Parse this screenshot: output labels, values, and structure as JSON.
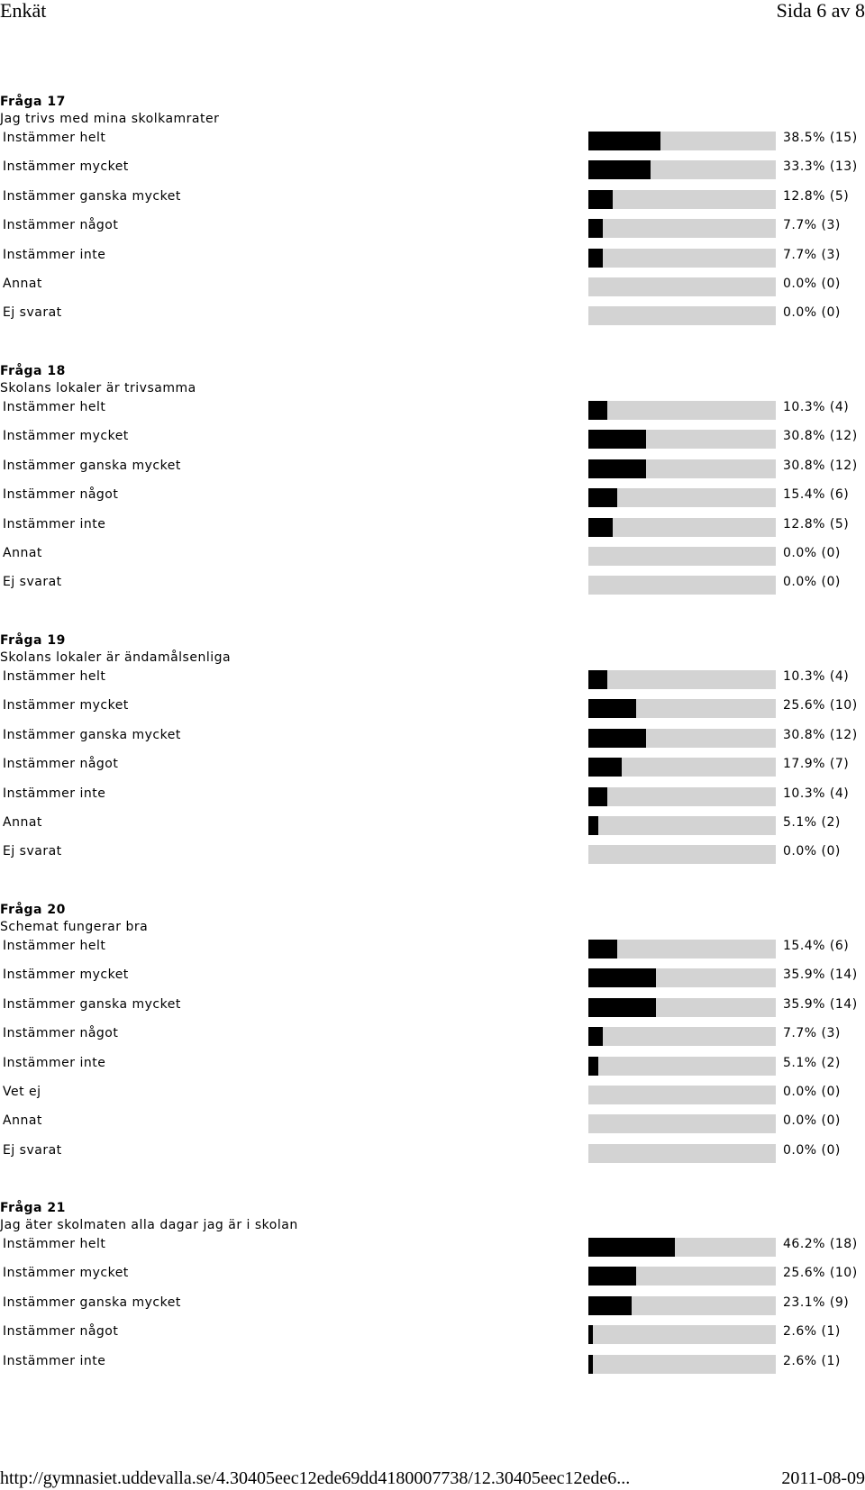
{
  "header": {
    "left": "Enkät",
    "right": "Sida 6 av 8"
  },
  "footer": {
    "url": "http://gymnasiet.uddevalla.se/4.30405eec12ede69dd4180007738/12.30405eec12ede6...",
    "date": "2011-08-09"
  },
  "colors": {
    "bar_fill": "#000000",
    "bar_track": "#d3d3d3"
  },
  "questions": [
    {
      "title": "Fråga 17",
      "text": "Jag trivs med mina skolkamrater",
      "rows": [
        {
          "label": "Instämmer helt",
          "percent": 38.5,
          "value": "38.5% (15)"
        },
        {
          "label": "Instämmer mycket",
          "percent": 33.3,
          "value": "33.3% (13)"
        },
        {
          "label": "Instämmer ganska mycket",
          "percent": 12.8,
          "value": "12.8% (5)"
        },
        {
          "label": "Instämmer något",
          "percent": 7.7,
          "value": "7.7% (3)"
        },
        {
          "label": "Instämmer inte",
          "percent": 7.7,
          "value": "7.7% (3)"
        },
        {
          "label": "Annat",
          "percent": 0.0,
          "value": "0.0% (0)"
        },
        {
          "label": "Ej svarat",
          "percent": 0.0,
          "value": "0.0% (0)"
        }
      ]
    },
    {
      "title": "Fråga 18",
      "text": "Skolans lokaler är trivsamma",
      "rows": [
        {
          "label": "Instämmer helt",
          "percent": 10.3,
          "value": "10.3% (4)"
        },
        {
          "label": "Instämmer mycket",
          "percent": 30.8,
          "value": "30.8% (12)"
        },
        {
          "label": "Instämmer ganska mycket",
          "percent": 30.8,
          "value": "30.8% (12)"
        },
        {
          "label": "Instämmer något",
          "percent": 15.4,
          "value": "15.4% (6)"
        },
        {
          "label": "Instämmer inte",
          "percent": 12.8,
          "value": "12.8% (5)"
        },
        {
          "label": "Annat",
          "percent": 0.0,
          "value": "0.0% (0)"
        },
        {
          "label": "Ej svarat",
          "percent": 0.0,
          "value": "0.0% (0)"
        }
      ]
    },
    {
      "title": "Fråga 19",
      "text": "Skolans lokaler är ändamålsenliga",
      "rows": [
        {
          "label": "Instämmer helt",
          "percent": 10.3,
          "value": "10.3% (4)"
        },
        {
          "label": "Instämmer mycket",
          "percent": 25.6,
          "value": "25.6% (10)"
        },
        {
          "label": "Instämmer ganska mycket",
          "percent": 30.8,
          "value": "30.8% (12)"
        },
        {
          "label": "Instämmer något",
          "percent": 17.9,
          "value": "17.9% (7)"
        },
        {
          "label": "Instämmer inte",
          "percent": 10.3,
          "value": "10.3% (4)"
        },
        {
          "label": "Annat",
          "percent": 5.1,
          "value": "5.1% (2)"
        },
        {
          "label": "Ej svarat",
          "percent": 0.0,
          "value": "0.0% (0)"
        }
      ]
    },
    {
      "title": "Fråga 20",
      "text": "Schemat fungerar bra",
      "rows": [
        {
          "label": "Instämmer helt",
          "percent": 15.4,
          "value": "15.4% (6)"
        },
        {
          "label": "Instämmer mycket",
          "percent": 35.9,
          "value": "35.9% (14)"
        },
        {
          "label": "Instämmer ganska mycket",
          "percent": 35.9,
          "value": "35.9% (14)"
        },
        {
          "label": "Instämmer något",
          "percent": 7.7,
          "value": "7.7% (3)"
        },
        {
          "label": "Instämmer inte",
          "percent": 5.1,
          "value": "5.1% (2)"
        },
        {
          "label": "Vet ej",
          "percent": 0.0,
          "value": "0.0% (0)"
        },
        {
          "label": "Annat",
          "percent": 0.0,
          "value": "0.0% (0)"
        },
        {
          "label": "Ej svarat",
          "percent": 0.0,
          "value": "0.0% (0)"
        }
      ]
    },
    {
      "title": "Fråga 21",
      "text": "Jag äter skolmaten alla dagar jag är i skolan",
      "rows": [
        {
          "label": "Instämmer helt",
          "percent": 46.2,
          "value": "46.2% (18)"
        },
        {
          "label": "Instämmer mycket",
          "percent": 25.6,
          "value": "25.6% (10)"
        },
        {
          "label": "Instämmer ganska mycket",
          "percent": 23.1,
          "value": "23.1% (9)"
        },
        {
          "label": "Instämmer något",
          "percent": 2.6,
          "value": "2.6% (1)"
        },
        {
          "label": "Instämmer inte",
          "percent": 2.6,
          "value": "2.6% (1)"
        }
      ]
    }
  ]
}
